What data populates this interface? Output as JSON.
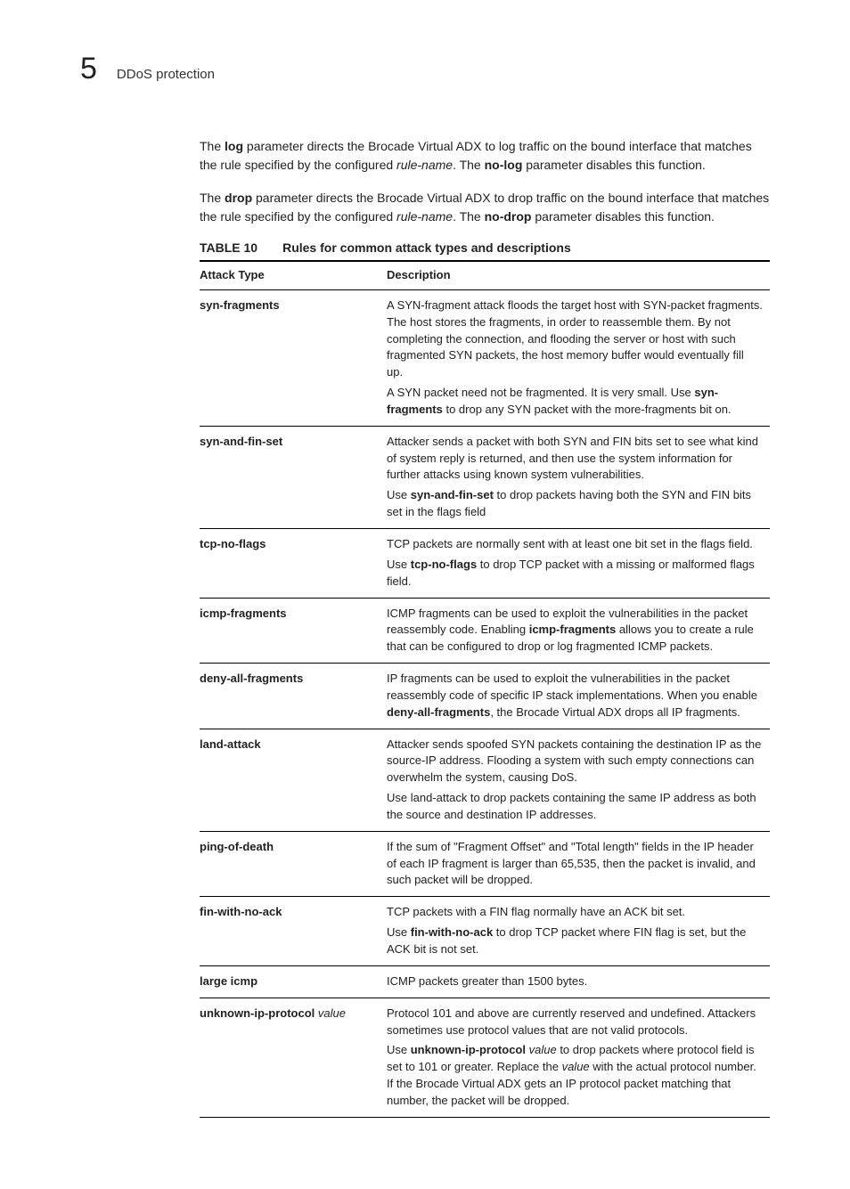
{
  "header": {
    "chapter_number": "5",
    "section_title": "DDoS protection"
  },
  "paragraphs": {
    "p1_pre": "The ",
    "p1_bold1": "log",
    "p1_mid1": " parameter directs the Brocade Virtual ADX to log traffic on the bound interface that matches the rule specified by the configured ",
    "p1_ital1": "rule-name",
    "p1_mid2": ". The ",
    "p1_bold2": "no-log",
    "p1_end": " parameter disables this function.",
    "p2_pre": "The ",
    "p2_bold1": "drop",
    "p2_mid1": " parameter directs the Brocade Virtual ADX to drop traffic on the bound interface that matches the rule specified by the configured ",
    "p2_ital1": "rule-name",
    "p2_mid2": ". The ",
    "p2_bold2": "no-drop",
    "p2_end": " parameter disables this function."
  },
  "table": {
    "number": "TABLE 10",
    "title": "Rules for common attack types and descriptions",
    "col1": "Attack Type",
    "col2": "Description",
    "rows": [
      {
        "name": "syn-fragments",
        "desc": [
          {
            "segments": [
              {
                "t": "A SYN-fragment attack floods the target host with SYN-packet fragments. The host stores the fragments, in order to reassemble them. By not completing the connection, and flooding the server or host with such fragmented SYN packets, the host memory buffer would eventually fill up."
              }
            ]
          },
          {
            "segments": [
              {
                "t": "A SYN packet need not be fragmented. It is very small. Use "
              },
              {
                "t": "syn-fragments",
                "b": true
              },
              {
                "t": " to drop any SYN packet with the more-fragments bit on."
              }
            ]
          }
        ]
      },
      {
        "name": "syn-and-fin-set",
        "desc": [
          {
            "segments": [
              {
                "t": "Attacker sends a packet with both SYN and FIN bits set to see what kind of system reply is returned, and then use the system information for further attacks using known system vulnerabilities."
              }
            ]
          },
          {
            "segments": [
              {
                "t": "Use "
              },
              {
                "t": "syn-and-fin-set",
                "b": true
              },
              {
                "t": " to drop packets having both the SYN and FIN bits set in the flags field"
              }
            ]
          }
        ]
      },
      {
        "name": "tcp-no-flags",
        "desc": [
          {
            "segments": [
              {
                "t": "TCP packets are normally sent with at least one bit set in the flags field."
              }
            ]
          },
          {
            "segments": [
              {
                "t": "Use "
              },
              {
                "t": "tcp-no-flags",
                "b": true
              },
              {
                "t": " to drop TCP packet with a missing or malformed flags field."
              }
            ]
          }
        ]
      },
      {
        "name": "icmp-fragments",
        "desc": [
          {
            "segments": [
              {
                "t": "ICMP fragments can be used to exploit the vulnerabilities in the packet reassembly code. Enabling "
              },
              {
                "t": "icmp-fragments",
                "b": true
              },
              {
                "t": " allows you to create a rule that can be configured to drop or log fragmented ICMP packets."
              }
            ]
          }
        ]
      },
      {
        "name": "deny-all-fragments",
        "desc": [
          {
            "segments": [
              {
                "t": "IP fragments can be used to exploit the vulnerabilities in the packet reassembly code of specific IP stack implementations. When you enable "
              },
              {
                "t": "deny-all-fragments",
                "b": true
              },
              {
                "t": ", the Brocade Virtual ADX drops all IP fragments."
              }
            ]
          }
        ]
      },
      {
        "name": "land-attack",
        "desc": [
          {
            "segments": [
              {
                "t": "Attacker sends spoofed SYN packets containing the destination IP as the source-IP address. Flooding a system with such empty connections can overwhelm the system, causing DoS."
              }
            ]
          },
          {
            "segments": [
              {
                "t": "Use land-attack to drop packets containing the same IP address as both the source and destination IP addresses."
              }
            ]
          }
        ]
      },
      {
        "name": "ping-of-death",
        "desc": [
          {
            "segments": [
              {
                "t": "If the sum of \"Fragment Offset\" and \"Total length\" fields in the IP header of each IP fragment is larger than 65,535, then the packet is invalid, and such packet will be dropped."
              }
            ]
          }
        ]
      },
      {
        "name": "fin-with-no-ack",
        "desc": [
          {
            "segments": [
              {
                "t": "TCP packets with a FIN flag normally have an ACK bit set."
              }
            ]
          },
          {
            "segments": [
              {
                "t": "Use "
              },
              {
                "t": "fin-with-no-ack",
                "b": true
              },
              {
                "t": " to drop TCP packet where FIN flag is set, but the ACK bit is not set."
              }
            ]
          }
        ]
      },
      {
        "name": "large icmp",
        "desc": [
          {
            "segments": [
              {
                "t": "ICMP packets greater than 1500 bytes."
              }
            ]
          }
        ]
      },
      {
        "name_segments": [
          {
            "t": "unknown-ip-protocol ",
            "b": true
          },
          {
            "t": "value",
            "i": true
          }
        ],
        "desc": [
          {
            "segments": [
              {
                "t": "Protocol 101 and above are currently reserved and undefined. Attackers sometimes use protocol values that are not valid protocols."
              }
            ]
          },
          {
            "segments": [
              {
                "t": "Use "
              },
              {
                "t": "unknown-ip-protocol",
                "b": true
              },
              {
                "t": " "
              },
              {
                "t": "value",
                "i": true
              },
              {
                "t": " to drop packets where protocol field is set to 101 or greater. Replace the "
              },
              {
                "t": "value",
                "i": true
              },
              {
                "t": " with the actual protocol number. If the Brocade Virtual ADX gets an IP protocol packet matching that number, the packet will be dropped."
              }
            ]
          }
        ]
      }
    ]
  }
}
